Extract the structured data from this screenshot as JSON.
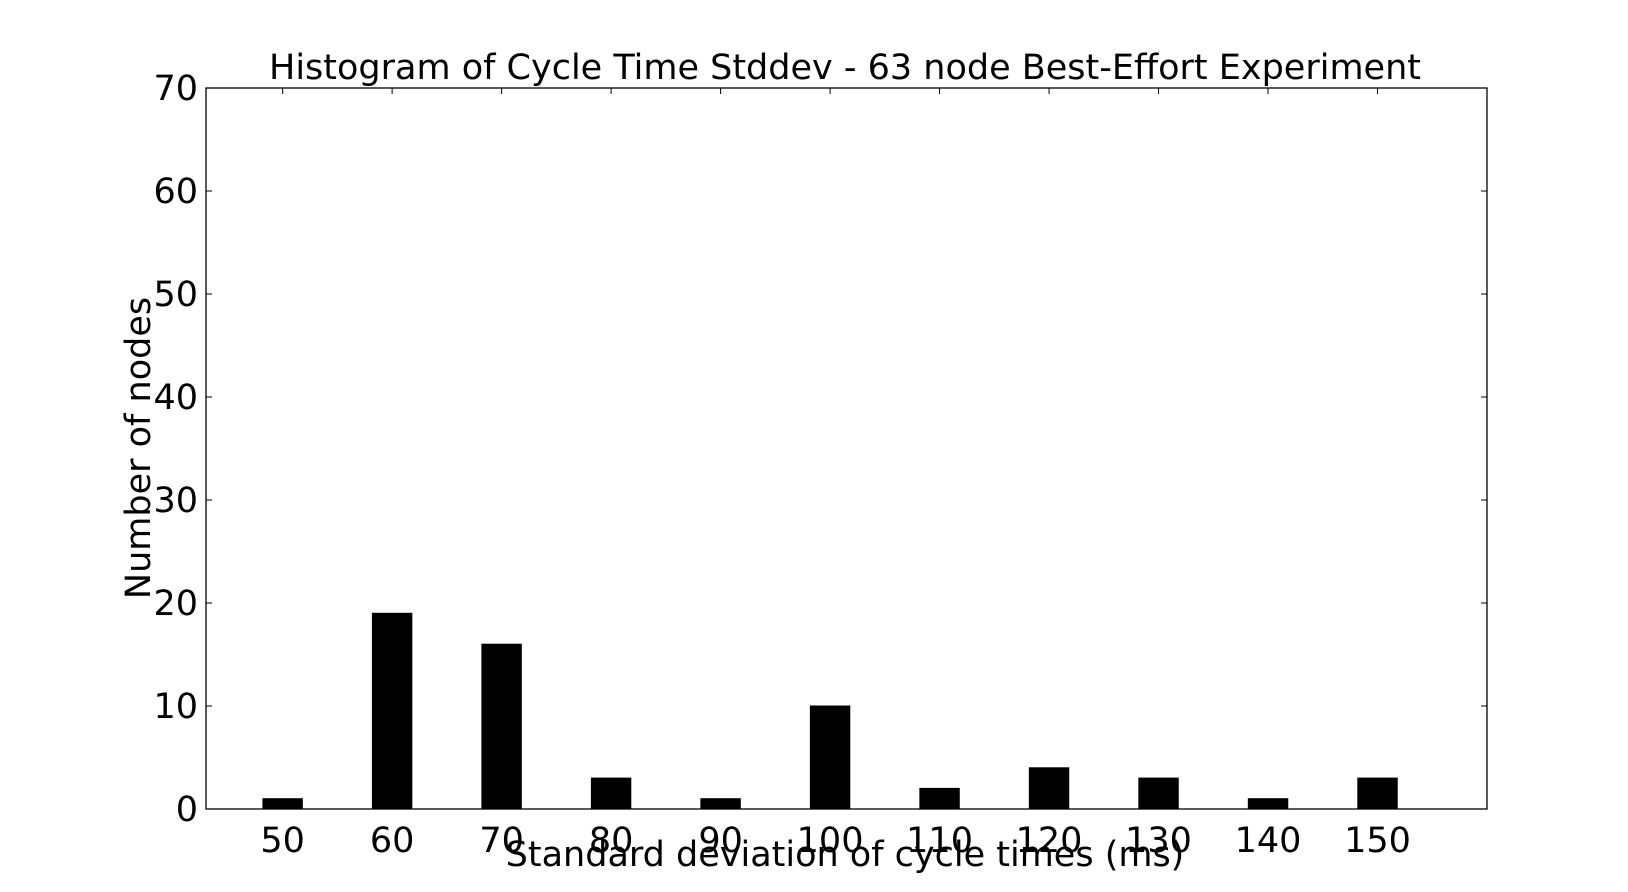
{
  "chart_data": {
    "type": "bar",
    "title": "Histogram of Cycle Time Stddev - 63 node Best-Effort Experiment",
    "xlabel": "Standard deviation of cycle times (ms)",
    "ylabel": "Number of nodes",
    "categories": [
      50,
      60,
      70,
      80,
      90,
      100,
      110,
      120,
      130,
      140,
      150
    ],
    "values": [
      1,
      19,
      16,
      3,
      1,
      10,
      2,
      4,
      3,
      1,
      3
    ],
    "xlim": [
      43,
      160
    ],
    "ylim": [
      0,
      70
    ],
    "yticks": [
      0,
      10,
      20,
      30,
      40,
      50,
      60,
      70
    ],
    "xticks": [
      50,
      60,
      70,
      80,
      90,
      100,
      110,
      120,
      130,
      140,
      150
    ],
    "grid": false,
    "legend": "none",
    "colors": {
      "bar": "#000000",
      "axes": "#000000",
      "background": "#ffffff"
    }
  }
}
